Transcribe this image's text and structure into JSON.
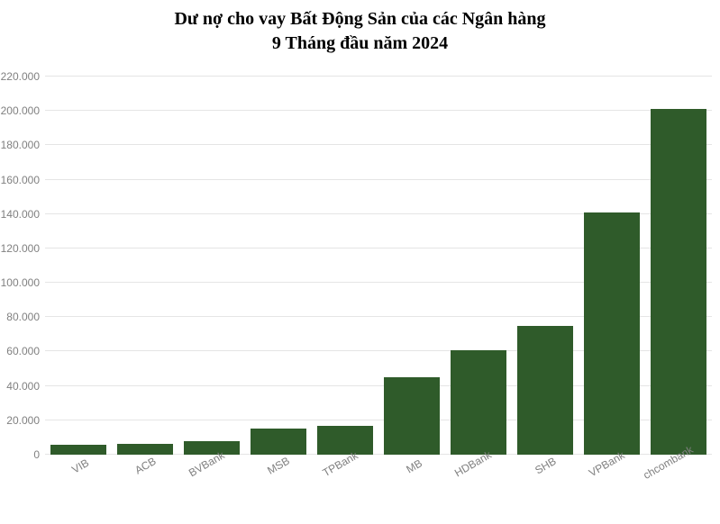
{
  "chart": {
    "type": "bar",
    "title_line1": "Dư nợ cho vay Bất Động Sản của các Ngân hàng",
    "title_line2": "9 Tháng đầu năm 2024",
    "title_fontsize": 20,
    "title_color": "#000000",
    "background_color": "#ffffff",
    "grid_color": "#e5e5e5",
    "bar_color": "#2f5b2a",
    "bar_width_ratio": 0.84,
    "ylim": [
      0,
      220000
    ],
    "ytick_step": 20000,
    "ytick_labels": [
      "0",
      "20.000",
      "40.000",
      "60.000",
      "80.000",
      "100.000",
      "120.000",
      "140.000",
      "160.000",
      "180.000",
      "200.000",
      "220.000"
    ],
    "categories": [
      "VIB",
      "ACB",
      "BVBank",
      "MSB",
      "TPBank",
      "MB",
      "HDBank",
      "SHB",
      "VPBank",
      "chcombank"
    ],
    "values": [
      6000,
      6500,
      8000,
      15000,
      17000,
      45000,
      61000,
      75000,
      141000,
      201000
    ],
    "axis_label_fontsize": 12,
    "axis_label_color": "#808080",
    "xlabel_rotation_deg": -30
  }
}
